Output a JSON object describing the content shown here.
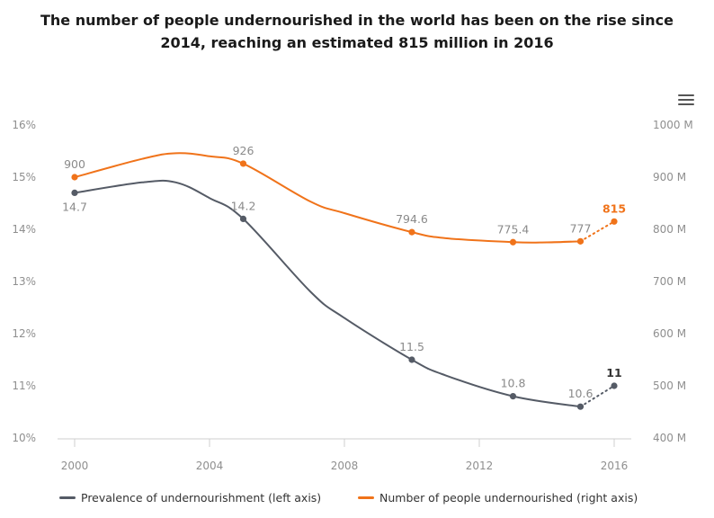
{
  "title": "The number of people undernourished in the world has been on the rise since 2014, reaching an estimated 815 million in 2016",
  "menu_icon": "hamburger-menu-icon",
  "legend": {
    "prevalence": "Prevalence of undernourishment (left axis)",
    "number": "Number of people undernourished (right axis)"
  },
  "colors": {
    "prevalence": "#555b66",
    "number": "#f0731a"
  },
  "chart_data": {
    "type": "line",
    "title": "The number of people undernourished in the world has been on the rise since 2014, reaching an estimated 815 million in 2016",
    "xlabel": "",
    "x_ticks": [
      "2000",
      "2004",
      "2008",
      "2012",
      "2016"
    ],
    "xlim": [
      2000,
      2016
    ],
    "left_axis": {
      "ylim": [
        10,
        16
      ],
      "tick_labels": [
        "10%",
        "11%",
        "12%",
        "13%",
        "14%",
        "15%",
        "16%"
      ]
    },
    "right_axis": {
      "ylim": [
        400,
        1000
      ],
      "tick_labels": [
        "400 M",
        "500 M",
        "600 M",
        "700 M",
        "800 M",
        "900 M",
        "1000 M"
      ]
    },
    "grid": false,
    "legend_position": "bottom",
    "series": [
      {
        "name": "Prevalence of undernourishment (left axis)",
        "axis": "left",
        "color": "#555b66",
        "x": [
          2000,
          2002,
          2003,
          2004,
          2005,
          2007,
          2008,
          2010,
          2011,
          2013,
          2015,
          2016
        ],
        "y": [
          14.7,
          14.9,
          14.9,
          14.6,
          14.2,
          12.8,
          12.3,
          11.5,
          11.2,
          10.8,
          10.6,
          11.0
        ],
        "projected_from_index": 10,
        "labels": [
          {
            "x": 2000,
            "y": 14.7,
            "text": "14.7",
            "pos": "below"
          },
          {
            "x": 2005,
            "y": 14.2,
            "text": "14.2",
            "pos": "above"
          },
          {
            "x": 2010,
            "y": 11.5,
            "text": "11.5",
            "pos": "above"
          },
          {
            "x": 2013,
            "y": 10.8,
            "text": "10.8",
            "pos": "above"
          },
          {
            "x": 2015,
            "y": 10.6,
            "text": "10.6",
            "pos": "above"
          },
          {
            "x": 2016,
            "y": 11.0,
            "text": "11",
            "pos": "above",
            "strong": true
          }
        ]
      },
      {
        "name": "Number of people undernourished (right axis)",
        "axis": "right",
        "color": "#f0731a",
        "x": [
          2000,
          2002,
          2003,
          2004,
          2005,
          2007,
          2008,
          2010,
          2011,
          2013,
          2014,
          2015,
          2016
        ],
        "y": [
          900,
          935,
          946,
          940,
          926,
          853,
          831,
          794.6,
          783,
          775.4,
          775,
          777,
          815
        ],
        "projected_from_index": 11,
        "labels": [
          {
            "x": 2000,
            "y": 900,
            "text": "900",
            "pos": "above"
          },
          {
            "x": 2005,
            "y": 926,
            "text": "926",
            "pos": "above"
          },
          {
            "x": 2010,
            "y": 794.6,
            "text": "794.6",
            "pos": "above"
          },
          {
            "x": 2013,
            "y": 775.4,
            "text": "775.4",
            "pos": "above"
          },
          {
            "x": 2015,
            "y": 777,
            "text": "777",
            "pos": "above"
          },
          {
            "x": 2016,
            "y": 815,
            "text": "815",
            "pos": "above",
            "strong": true
          }
        ]
      }
    ]
  }
}
